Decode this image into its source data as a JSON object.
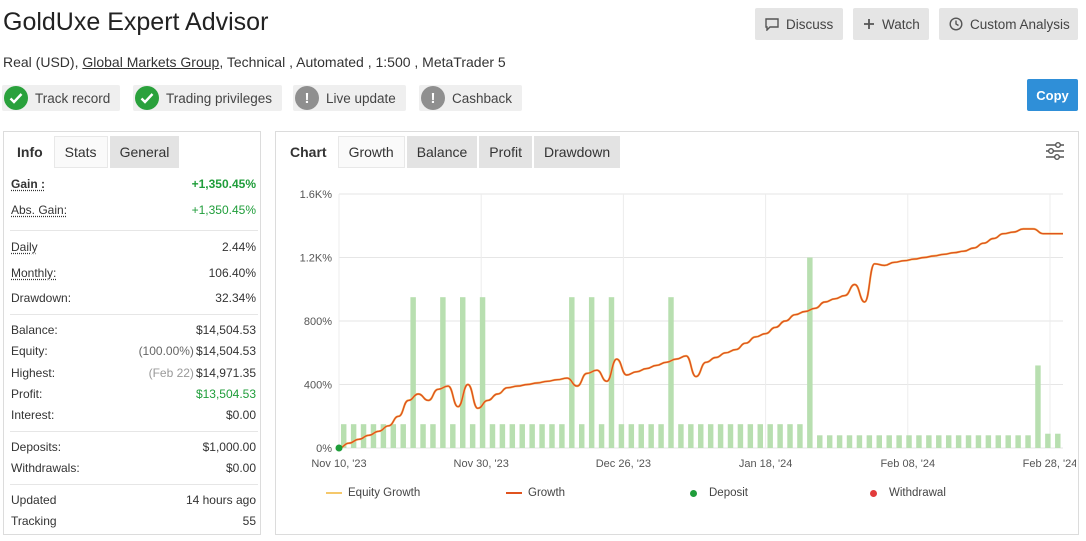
{
  "header": {
    "title": "GoldUxe Expert Advisor",
    "subtitle_prefix": "Real (USD),",
    "broker_link": "Global Markets Group",
    "subtitle_suffix": ", Technical , Automated , 1:500 , MetaTrader 5",
    "buttons": {
      "discuss": "Discuss",
      "watch": "Watch",
      "custom_analysis": "Custom Analysis"
    },
    "copy": "Copy"
  },
  "badges": [
    {
      "label": "Track record",
      "status": "ok"
    },
    {
      "label": "Trading privileges",
      "status": "ok"
    },
    {
      "label": "Live update",
      "status": "warn"
    },
    {
      "label": "Cashback",
      "status": "warn"
    }
  ],
  "left_tabs": {
    "info": "Info",
    "stats": "Stats",
    "general": "General"
  },
  "stats": {
    "gain": {
      "label": "Gain :",
      "value": "+1,350.45%"
    },
    "abs_gain": {
      "label": "Abs. Gain:",
      "value": "+1,350.45%"
    },
    "daily": {
      "label": "Daily",
      "value": "2.44%"
    },
    "monthly": {
      "label": "Monthly:",
      "value": "106.40%"
    },
    "drawdown": {
      "label": "Drawdown:",
      "value": "32.34%"
    },
    "balance": {
      "label": "Balance:",
      "value": "$14,504.53"
    },
    "equity": {
      "label": "Equity:",
      "pre": "(100.00%)",
      "value": "$14,504.53"
    },
    "highest": {
      "label": "Highest:",
      "pre": "(Feb 22)",
      "value": "$14,971.35"
    },
    "profit": {
      "label": "Profit:",
      "value": "$13,504.53"
    },
    "interest": {
      "label": "Interest:",
      "value": "$0.00"
    },
    "deposits": {
      "label": "Deposits:",
      "value": "$1,000.00"
    },
    "withdrawals": {
      "label": "Withdrawals:",
      "value": "$0.00"
    },
    "updated": {
      "label": "Updated",
      "value": "14 hours ago"
    },
    "tracking": {
      "label": "Tracking",
      "value": "55"
    }
  },
  "chart_tabs": {
    "chart": "Chart",
    "growth": "Growth",
    "balance": "Balance",
    "profit": "Profit",
    "drawdown": "Drawdown"
  },
  "icons": {
    "discuss": "chat-bubble-icon",
    "watch": "plus-icon",
    "custom": "clock-icon",
    "settings": "sliders-icon"
  },
  "colors": {
    "growth": "#e0531f",
    "equity": "#f5c86b",
    "bars": "#b8dfb0",
    "deposit": "#1f9d3a",
    "withdrawal": "#e23b3b",
    "accent": "#2f8fd8"
  },
  "chart_data": {
    "type": "line",
    "x_labels": [
      "Nov 10, '23",
      "Nov 30, '23",
      "Dec 26, '23",
      "Jan 18, '24",
      "Feb 08, '24",
      "Feb 28, '24"
    ],
    "y_ticks": [
      "0%",
      "400%",
      "800%",
      "1.2K%",
      "1.6K%"
    ],
    "ylim": [
      0,
      1600
    ],
    "grid": true,
    "legend": [
      "Equity Growth",
      "Growth",
      "Deposit",
      "Withdrawal"
    ],
    "legend_position": "bottom",
    "series": [
      {
        "name": "Growth",
        "values": [
          0,
          30,
          55,
          80,
          105,
          140,
          200,
          300,
          340,
          300,
          370,
          390,
          260,
          400,
          250,
          300,
          340,
          380,
          390,
          400,
          410,
          420,
          430,
          440,
          390,
          470,
          490,
          420,
          560,
          460,
          480,
          500,
          520,
          540,
          560,
          580,
          450,
          540,
          570,
          600,
          620,
          660,
          700,
          720,
          760,
          800,
          840,
          860,
          880,
          920,
          940,
          960,
          1030,
          920,
          1160,
          1150,
          1170,
          1180,
          1190,
          1200,
          1210,
          1220,
          1230,
          1240,
          1260,
          1290,
          1320,
          1350,
          1360,
          1380,
          1380,
          1350,
          1350,
          1350
        ]
      }
    ],
    "bars": [
      150,
      150,
      150,
      150,
      150,
      150,
      150,
      950,
      150,
      150,
      950,
      150,
      950,
      150,
      950,
      150,
      150,
      150,
      150,
      150,
      150,
      150,
      150,
      950,
      150,
      950,
      150,
      950,
      150,
      150,
      150,
      150,
      150,
      950,
      150,
      150,
      150,
      150,
      150,
      150,
      150,
      150,
      150,
      150,
      150,
      150,
      150,
      1200,
      80,
      80,
      80,
      80,
      80,
      80,
      80,
      80,
      80,
      80,
      80,
      80,
      80,
      80,
      80,
      80,
      80,
      80,
      80,
      80,
      80,
      80,
      520,
      90,
      90
    ],
    "deposit_points": [
      {
        "x_index": 0,
        "value": 0
      }
    ]
  }
}
